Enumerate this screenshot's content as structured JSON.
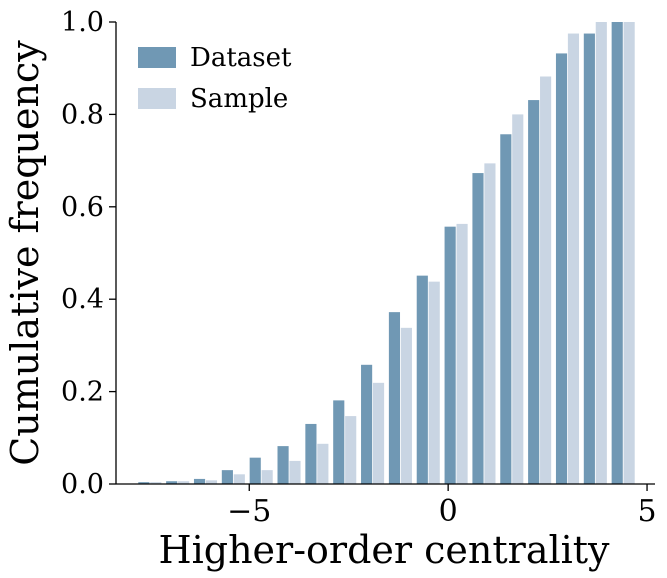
{
  "chart_data": {
    "type": "bar",
    "xlabel": "Higher-order centrality",
    "ylabel": "Cumulative frequency",
    "xlim": [
      -8.35,
      5.2
    ],
    "ylim": [
      0,
      1.0
    ],
    "xticks": [
      -5,
      0,
      5
    ],
    "xtick_labels": [
      "−5",
      "0",
      "5"
    ],
    "yticks": [
      0.0,
      0.2,
      0.4,
      0.6,
      0.8,
      1.0
    ],
    "ytick_labels": [
      "0.0",
      "0.2",
      "0.4",
      "0.6",
      "0.8",
      "1.0"
    ],
    "grid": false,
    "legend": "top-left",
    "bin_centers": [
      -7.5,
      -6.8,
      -6.1,
      -5.4,
      -4.7,
      -4.0,
      -3.3,
      -2.6,
      -1.9,
      -1.2,
      -0.5,
      0.2,
      0.9,
      1.6,
      2.3,
      3.0,
      3.7,
      4.4
    ],
    "series": [
      {
        "name": "Dataset",
        "color": "#7098b4",
        "values": [
          0.004,
          0.006,
          0.011,
          0.03,
          0.057,
          0.082,
          0.13,
          0.181,
          0.258,
          0.372,
          0.451,
          0.557,
          0.673,
          0.757,
          0.831,
          0.932,
          0.975,
          1.0
        ]
      },
      {
        "name": "Sample",
        "color": "#c9d5e3",
        "values": [
          0.004,
          0.006,
          0.008,
          0.021,
          0.03,
          0.05,
          0.087,
          0.147,
          0.219,
          0.338,
          0.438,
          0.563,
          0.694,
          0.8,
          0.882,
          0.975,
          1.0,
          1.0
        ]
      }
    ]
  }
}
